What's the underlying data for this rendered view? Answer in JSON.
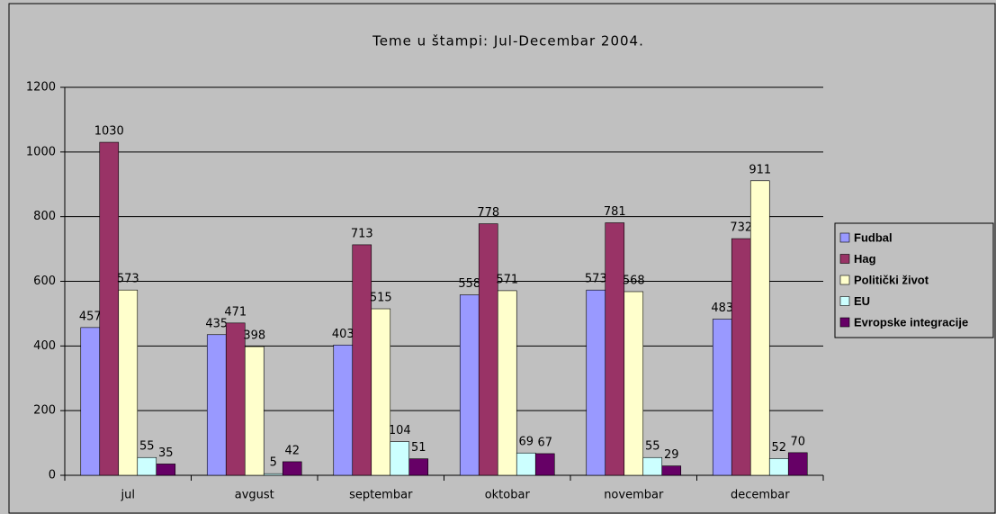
{
  "chart_data": {
    "type": "bar",
    "title": "Teme u štampi: Jul-Decembar 2004.",
    "categories": [
      "jul",
      "avgust",
      "septembar",
      "oktobar",
      "novembar",
      "decembar"
    ],
    "series": [
      {
        "name": "Fudbal",
        "color": "#9999ff",
        "values": [
          457,
          435,
          403,
          558,
          573,
          483
        ]
      },
      {
        "name": "Hag",
        "color": "#993366",
        "values": [
          1030,
          471,
          713,
          778,
          781,
          732
        ]
      },
      {
        "name": "Politički život",
        "color": "#ffffcc",
        "values": [
          573,
          398,
          515,
          571,
          568,
          911
        ]
      },
      {
        "name": "EU",
        "color": "#ccffff",
        "values": [
          55,
          5,
          104,
          69,
          55,
          52
        ]
      },
      {
        "name": "Evropske integracije",
        "color": "#660066",
        "values": [
          35,
          42,
          51,
          67,
          29,
          70
        ]
      }
    ],
    "ylim": [
      0,
      1200
    ],
    "yticks": [
      0,
      200,
      400,
      600,
      800,
      1000,
      1200
    ],
    "grid": true,
    "legend": "right"
  }
}
